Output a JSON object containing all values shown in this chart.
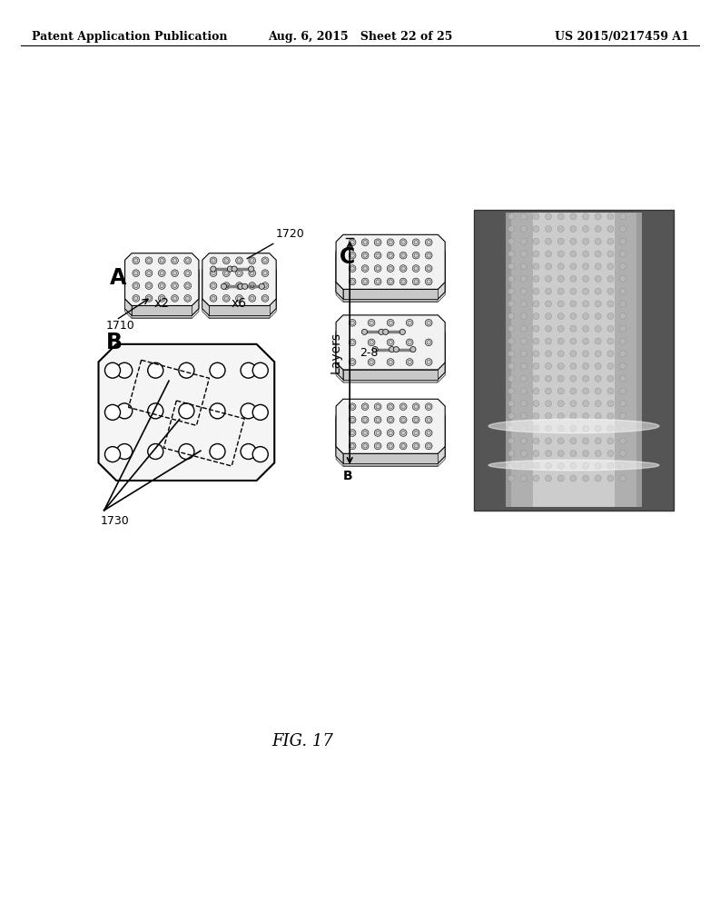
{
  "background_color": "#ffffff",
  "header_left": "Patent Application Publication",
  "header_center": "Aug. 6, 2015   Sheet 22 of 25",
  "header_right": "US 2015/0217459 A1",
  "footer_text": "FIG. 17",
  "label_A": "A",
  "label_B": "B",
  "label_C": "C",
  "ref_1710": "1710",
  "ref_1720": "1720",
  "ref_1730": "1730",
  "x2_label": "x2",
  "x6_label": "x6",
  "layers_label": "Layers",
  "layers_range": "2-8",
  "bottom_label": "B",
  "fig_label": "FIG. 17"
}
